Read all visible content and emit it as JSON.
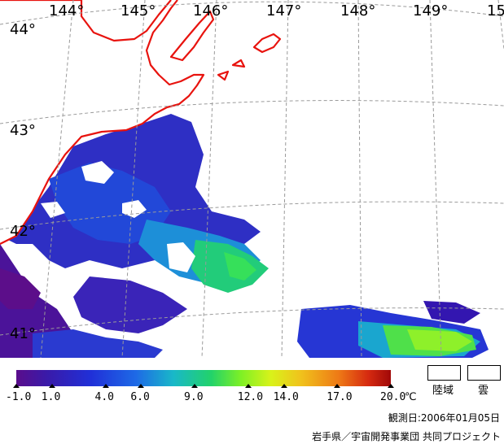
{
  "map": {
    "longitude_labels": [
      "144°",
      "145°",
      "146°",
      "147°",
      "148°",
      "149°",
      "15"
    ],
    "latitude_labels": [
      "44°",
      "43°",
      "42°",
      "41°"
    ],
    "colors": {
      "coastline": "#e8130e",
      "graticule": "#9a9a9a",
      "land": "#ffffff",
      "cloud": "#ffffff"
    }
  },
  "colorbar": {
    "tick_labels": [
      "-1.0",
      "1.0",
      "4.0",
      "6.0",
      "9.0",
      "12.0",
      "14.0",
      "17.0",
      "20.0"
    ],
    "tick_values": [
      -1.0,
      1.0,
      4.0,
      6.0,
      9.0,
      12.0,
      14.0,
      17.0,
      20.0
    ],
    "min": -1.0,
    "max": 20.0,
    "unit": "℃"
  },
  "legend": {
    "land_label": "陸域",
    "cloud_label": "雲"
  },
  "footer": {
    "observation_date": "観測日:2006年01月05日",
    "credit": "岩手県／宇宙開発事業団 共同プロジェクト"
  }
}
